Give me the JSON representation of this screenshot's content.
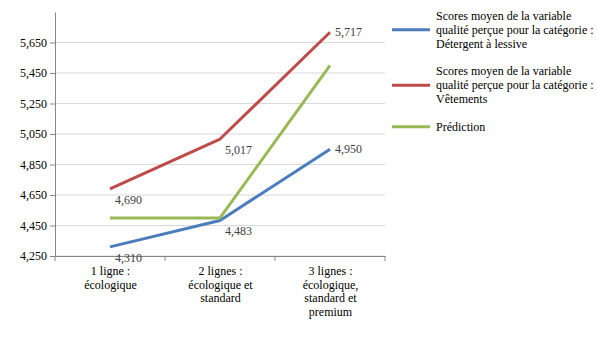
{
  "chart_data": {
    "type": "line",
    "categories": [
      "1 ligne :\nécologique",
      "2 lignes :\nécologique et\nstandard",
      "3 lignes :\nécologique,\nstandard et\npremium"
    ],
    "series": [
      {
        "name": "Scores moyen de la variable qualité perçue pour la catégorie : Détergent à lessive",
        "color": "#4a7ebb",
        "values": [
          4.31,
          4.483,
          4.95
        ],
        "value_labels": [
          "4,310",
          "4,483",
          "4,950"
        ],
        "data_labels": true
      },
      {
        "name": "Scores moyen de la variable qualité perçue pour la catégorie : Vêtements",
        "color": "#be4b48",
        "values": [
          4.69,
          5.017,
          5.717
        ],
        "value_labels": [
          "4,690",
          "5,017",
          "5,717"
        ],
        "data_labels": true
      },
      {
        "name": "Prédiction",
        "color": "#98b954",
        "values": [
          4.5,
          4.5,
          5.5
        ],
        "data_labels": false
      }
    ],
    "ylim": [
      4.25,
      5.85
    ],
    "yticks": [
      {
        "value": 4.25,
        "label": "4,250"
      },
      {
        "value": 4.45,
        "label": "4,450"
      },
      {
        "value": 4.65,
        "label": "4,650"
      },
      {
        "value": 4.85,
        "label": "4,850"
      },
      {
        "value": 5.05,
        "label": "5,050"
      },
      {
        "value": 5.25,
        "label": "5,250"
      },
      {
        "value": 5.45,
        "label": "5,450"
      },
      {
        "value": 5.65,
        "label": "5,650"
      }
    ],
    "grid": true,
    "legend": "right"
  }
}
